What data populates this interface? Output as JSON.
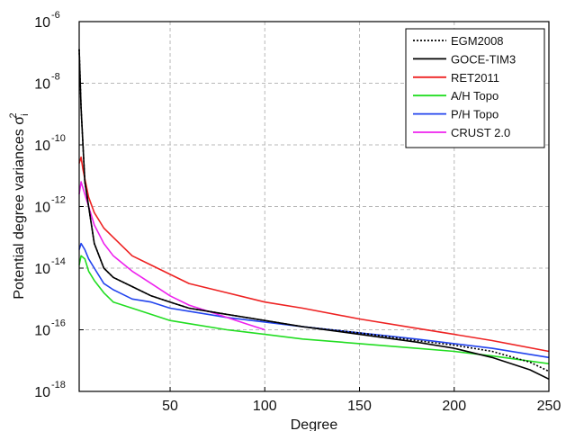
{
  "chart_data": {
    "type": "line",
    "xlabel": "Degree",
    "ylabel": "Potential degree variances σ",
    "ylabel_sub": "i",
    "ylabel_sup": "2",
    "y_scale": "log",
    "xlim": [
      2,
      250
    ],
    "ylim_exponents": [
      -18,
      -6
    ],
    "x_ticks": [
      50,
      100,
      150,
      200,
      250
    ],
    "x_tick_labels": [
      "50",
      "100",
      "150",
      "200",
      "250"
    ],
    "y_tick_exponents": [
      -18,
      -16,
      -14,
      -12,
      -10,
      -8,
      -6
    ],
    "y_tick_labels": [
      "10",
      "10",
      "10",
      "10",
      "10",
      "10",
      "10"
    ],
    "y_tick_sup": [
      "-18",
      "-16",
      "-14",
      "-12",
      "-10",
      "-8",
      "-6"
    ],
    "grid": true,
    "legend_position": "top-right",
    "series": [
      {
        "name": "EGM2008",
        "color": "#000000",
        "dash": true,
        "x": [
          2,
          3,
          4,
          5,
          7,
          10,
          15,
          20,
          30,
          40,
          50,
          60,
          70,
          80,
          100,
          120,
          150,
          180,
          200,
          220,
          240,
          250
        ],
        "log10_y": [
          -6.9,
          -8.8,
          -10.0,
          -11.2,
          -12.0,
          -13.2,
          -14.0,
          -14.3,
          -14.6,
          -14.9,
          -15.1,
          -15.3,
          -15.4,
          -15.5,
          -15.7,
          -15.9,
          -16.1,
          -16.35,
          -16.5,
          -16.7,
          -17.05,
          -17.35
        ]
      },
      {
        "name": "GOCE-TIM3",
        "color": "#000000",
        "dash": false,
        "x": [
          2,
          3,
          4,
          5,
          7,
          10,
          15,
          20,
          30,
          40,
          50,
          60,
          70,
          80,
          100,
          120,
          150,
          180,
          200,
          220,
          240,
          250
        ],
        "log10_y": [
          -6.9,
          -8.8,
          -10.0,
          -11.2,
          -12.0,
          -13.2,
          -14.0,
          -14.3,
          -14.6,
          -14.9,
          -15.1,
          -15.3,
          -15.4,
          -15.5,
          -15.7,
          -15.9,
          -16.15,
          -16.4,
          -16.6,
          -16.9,
          -17.3,
          -17.6
        ]
      },
      {
        "name": "RET2011",
        "color": "#ee2222",
        "dash": false,
        "x": [
          2,
          3,
          4,
          5,
          7,
          10,
          15,
          20,
          30,
          40,
          50,
          60,
          80,
          100,
          120,
          150,
          180,
          200,
          220,
          250
        ],
        "log10_y": [
          -10.6,
          -10.4,
          -10.8,
          -11.1,
          -11.7,
          -12.2,
          -12.7,
          -13.0,
          -13.6,
          -13.9,
          -14.2,
          -14.5,
          -14.8,
          -15.1,
          -15.3,
          -15.65,
          -15.95,
          -16.15,
          -16.35,
          -16.7
        ]
      },
      {
        "name": "A/H Topo",
        "color": "#22dd22",
        "dash": false,
        "x": [
          2,
          3,
          5,
          7,
          10,
          15,
          20,
          30,
          40,
          50,
          60,
          80,
          100,
          120,
          150,
          180,
          200,
          220,
          250
        ],
        "log10_y": [
          -13.9,
          -13.6,
          -13.7,
          -14.1,
          -14.4,
          -14.8,
          -15.1,
          -15.3,
          -15.5,
          -15.7,
          -15.8,
          -16.0,
          -16.15,
          -16.3,
          -16.45,
          -16.6,
          -16.7,
          -16.85,
          -17.1
        ]
      },
      {
        "name": "P/H Topo",
        "color": "#2244ee",
        "dash": false,
        "x": [
          2,
          3,
          5,
          7,
          10,
          15,
          20,
          30,
          40,
          50,
          60,
          80,
          100,
          120,
          150,
          180,
          200,
          220,
          250
        ],
        "log10_y": [
          -13.4,
          -13.2,
          -13.4,
          -13.7,
          -14.0,
          -14.5,
          -14.7,
          -15.0,
          -15.1,
          -15.3,
          -15.4,
          -15.6,
          -15.75,
          -15.9,
          -16.1,
          -16.3,
          -16.45,
          -16.6,
          -16.9
        ]
      },
      {
        "name": "CRUST 2.0",
        "color": "#ee22ee",
        "dash": false,
        "x": [
          2,
          3,
          5,
          7,
          10,
          15,
          20,
          30,
          40,
          50,
          60,
          70,
          80,
          90,
          100
        ],
        "log10_y": [
          -11.6,
          -11.2,
          -11.6,
          -12.0,
          -12.6,
          -13.2,
          -13.6,
          -14.1,
          -14.5,
          -14.9,
          -15.2,
          -15.4,
          -15.6,
          -15.8,
          -16.0
        ]
      }
    ]
  }
}
